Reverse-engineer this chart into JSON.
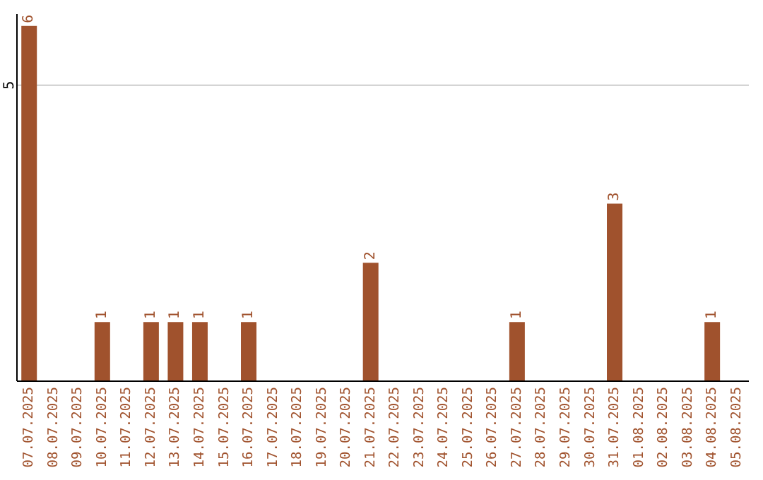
{
  "chart_data": {
    "type": "bar",
    "categories": [
      "07.07.2025",
      "08.07.2025",
      "09.07.2025",
      "10.07.2025",
      "11.07.2025",
      "12.07.2025",
      "13.07.2025",
      "14.07.2025",
      "15.07.2025",
      "16.07.2025",
      "17.07.2025",
      "18.07.2025",
      "19.07.2025",
      "20.07.2025",
      "21.07.2025",
      "22.07.2025",
      "23.07.2025",
      "24.07.2025",
      "25.07.2025",
      "26.07.2025",
      "27.07.2025",
      "28.07.2025",
      "29.07.2025",
      "30.07.2025",
      "31.07.2025",
      "01.08.2025",
      "02.08.2025",
      "03.08.2025",
      "04.08.2025",
      "05.08.2025"
    ],
    "values": [
      6,
      0,
      0,
      1,
      0,
      1,
      1,
      1,
      0,
      1,
      0,
      0,
      0,
      0,
      2,
      0,
      0,
      0,
      0,
      0,
      1,
      0,
      0,
      0,
      3,
      0,
      0,
      0,
      1,
      0
    ],
    "value_labels": [
      "6",
      null,
      null,
      "1",
      null,
      "1",
      "1",
      "1",
      null,
      "1",
      null,
      null,
      null,
      null,
      "2",
      null,
      null,
      null,
      null,
      null,
      "1",
      null,
      null,
      null,
      "3",
      null,
      null,
      null,
      "1",
      null
    ],
    "color": "#a0522d",
    "ylim": [
      0,
      6.2
    ],
    "yticks": [
      5
    ],
    "grid": "y"
  }
}
